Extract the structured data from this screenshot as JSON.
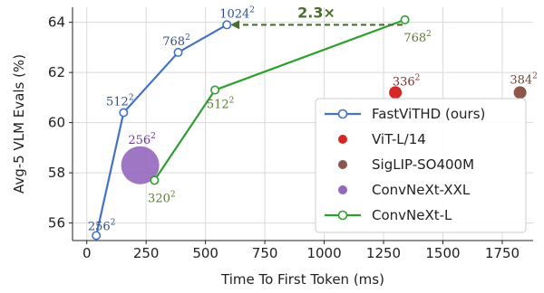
{
  "chart_data": {
    "type": "scatter",
    "xlabel": "Time To First Token (ms)",
    "ylabel": "Avg-5 VLM Evals (%)",
    "xlim": [
      -60,
      1880
    ],
    "ylim": [
      55.3,
      64.6
    ],
    "xticks": [
      0,
      250,
      500,
      750,
      1000,
      1250,
      1500,
      1750
    ],
    "yticks": [
      56,
      58,
      60,
      62,
      64
    ],
    "grid": true,
    "legend_position": "right",
    "series": [
      {
        "name": "FastViTHD (ours)",
        "kind": "line",
        "color": "#4472c4",
        "points": [
          {
            "x": 40,
            "y": 55.5,
            "label": "256",
            "sup": "2"
          },
          {
            "x": 155,
            "y": 60.4,
            "label": "512",
            "sup": "2"
          },
          {
            "x": 385,
            "y": 62.8,
            "label": "768",
            "sup": "2"
          },
          {
            "x": 590,
            "y": 63.9,
            "label": "1024",
            "sup": "2"
          }
        ]
      },
      {
        "name": "ViT-L/14",
        "kind": "dot",
        "color": "#d62728",
        "points": [
          {
            "x": 1300,
            "y": 61.2,
            "label": "336",
            "sup": "2"
          }
        ]
      },
      {
        "name": "SigLIP-SO400M",
        "kind": "dot",
        "color": "#8c564b",
        "points": [
          {
            "x": 1825,
            "y": 61.2,
            "label": "384",
            "sup": "2"
          }
        ]
      },
      {
        "name": "ConvNeXt-XXL",
        "kind": "bubble",
        "color": "#9467bd",
        "points": [
          {
            "x": 225,
            "y": 58.3,
            "label": "256",
            "sup": "2"
          }
        ]
      },
      {
        "name": "ConvNeXt-L",
        "kind": "line",
        "color": "#2ca02c",
        "points": [
          {
            "x": 285,
            "y": 57.7,
            "label": "320",
            "sup": "2"
          },
          {
            "x": 540,
            "y": 61.3,
            "label": "512",
            "sup": "2"
          },
          {
            "x": 1340,
            "y": 64.1,
            "label": "768",
            "sup": "2"
          }
        ]
      }
    ],
    "annotation": {
      "text": "2.3×",
      "arrow_from": {
        "x": 1330,
        "y": 63.9
      },
      "arrow_to": {
        "x": 605,
        "y": 63.9
      },
      "color": "#4a6e30"
    }
  }
}
